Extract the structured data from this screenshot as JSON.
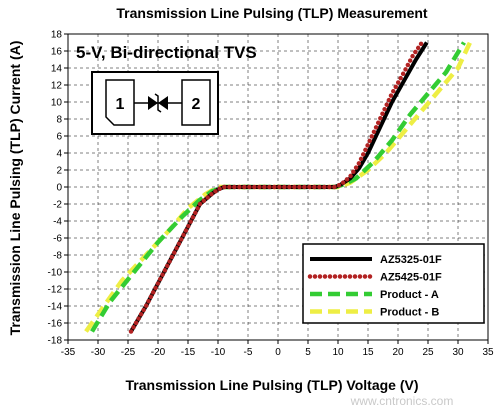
{
  "chart_data": {
    "type": "line",
    "title": "Transmission Line Pulsing (TLP) Measurement",
    "subtitle": "5-V, Bi-directional TVS",
    "xlabel": "Transmission Line Pulsing (TLP) Voltage (V)",
    "ylabel": "Transmission Line Pulsing (TLP) Current (A)",
    "xlim": [
      -35,
      35
    ],
    "ylim": [
      -18,
      18
    ],
    "xticks": [
      -35,
      -30,
      -25,
      -20,
      -15,
      -10,
      -5,
      0,
      5,
      10,
      15,
      20,
      25,
      30,
      35
    ],
    "yticks": [
      -18,
      -16,
      -14,
      -12,
      -10,
      -8,
      -6,
      -4,
      -2,
      0,
      2,
      4,
      6,
      8,
      10,
      12,
      14,
      16,
      18
    ],
    "grid": true,
    "legend_position": "bottom-right",
    "diagram": {
      "pin1": "1",
      "pin2": "2"
    },
    "series": [
      {
        "name": "AZ5325-01F",
        "color": "#000000",
        "style": "solid",
        "x": [
          -24.5,
          -22,
          -19,
          -16,
          -14.5,
          -13,
          -11,
          -10,
          -9,
          0,
          9.5,
          10.5,
          12,
          13.5,
          15,
          17,
          19,
          21,
          23,
          24.8
        ],
        "y": [
          -17,
          -14,
          -10,
          -6,
          -4,
          -2,
          -0.8,
          -0.3,
          0,
          0,
          0,
          0.3,
          1,
          2.2,
          4,
          7,
          10,
          12.5,
          15,
          17
        ]
      },
      {
        "name": "AZ5425-01F",
        "color": "#b22222",
        "style": "dotted",
        "x": [
          -24.5,
          -22,
          -19,
          -16,
          -14.5,
          -13,
          -11,
          -10,
          -9,
          0,
          9.5,
          10.5,
          12,
          13.5,
          15,
          17,
          19,
          21,
          22.5,
          24
        ],
        "y": [
          -17,
          -14,
          -10,
          -6,
          -4,
          -2,
          -0.8,
          -0.3,
          0,
          0,
          0,
          0.3,
          1.2,
          2.8,
          5,
          8,
          11,
          13.5,
          15.5,
          17
        ]
      },
      {
        "name": "Product - A",
        "color": "#33cc33",
        "style": "dashed",
        "x": [
          -31,
          -28,
          -24,
          -20,
          -16,
          -13,
          -11,
          -9,
          0,
          9.5,
          11,
          13,
          16,
          19,
          22,
          25,
          28,
          31
        ],
        "y": [
          -17,
          -13.5,
          -10,
          -6.5,
          -3.5,
          -1.5,
          -0.5,
          0,
          0,
          0,
          0.3,
          1,
          3,
          5.5,
          8.5,
          11,
          13.5,
          17
        ]
      },
      {
        "name": "Product - B",
        "color": "#eeee44",
        "style": "dashed",
        "x": [
          -32,
          -29,
          -26,
          -22,
          -18,
          -15,
          -12,
          -10,
          0,
          10,
          12,
          15,
          18,
          21,
          24,
          27,
          30,
          32
        ],
        "y": [
          -17,
          -14,
          -11,
          -8,
          -5,
          -2.5,
          -0.8,
          0,
          0,
          0,
          0.5,
          2,
          4,
          6.5,
          9,
          11.5,
          14,
          17
        ]
      }
    ]
  }
}
